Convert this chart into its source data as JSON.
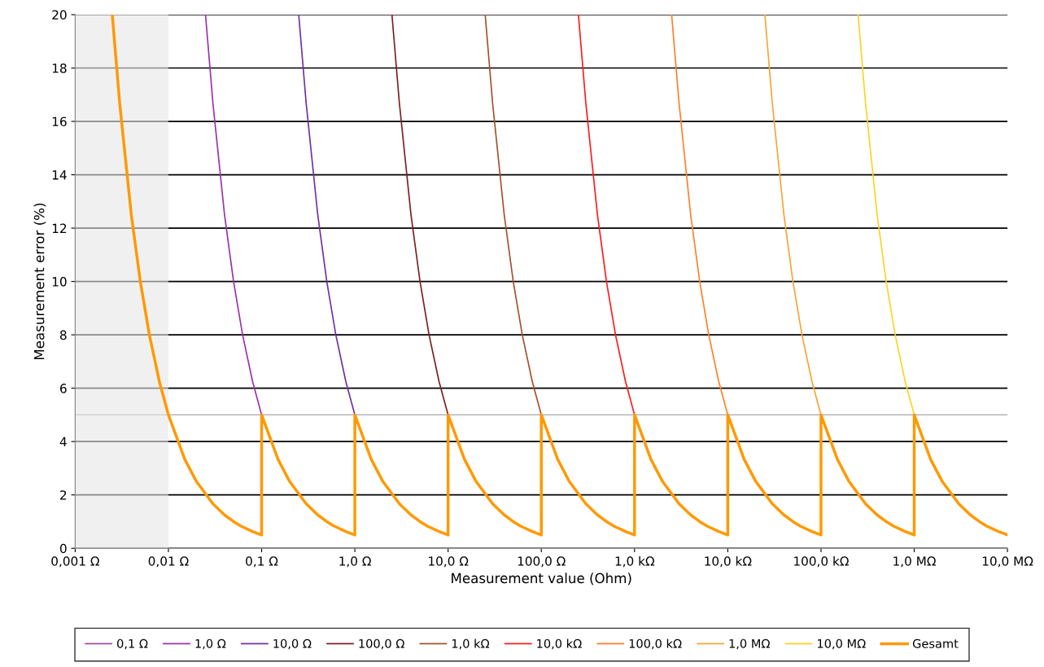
{
  "chart_data": {
    "type": "line",
    "xlabel": "Measurement value (Ohm)",
    "ylabel": "Measurement error (%)",
    "log": "x",
    "xlim": [
      0.001,
      10000000
    ],
    "ylim": [
      0,
      20
    ],
    "xticks": [
      {
        "value": 0.001,
        "label": "0,001 Ω"
      },
      {
        "value": 0.01,
        "label": "0,01 Ω"
      },
      {
        "value": 0.1,
        "label": "0,1 Ω"
      },
      {
        "value": 1,
        "label": "1,0 Ω"
      },
      {
        "value": 10,
        "label": "10,0 Ω"
      },
      {
        "value": 100,
        "label": "100,0 Ω"
      },
      {
        "value": 1000,
        "label": "1,0 kΩ"
      },
      {
        "value": 10000,
        "label": "10,0 kΩ"
      },
      {
        "value": 100000,
        "label": "100,0 kΩ"
      },
      {
        "value": 1000000,
        "label": "1,0 MΩ"
      },
      {
        "value": 10000000,
        "label": "10,0 MΩ"
      }
    ],
    "yticks": [
      0,
      2,
      4,
      6,
      8,
      10,
      12,
      14,
      16,
      18,
      20
    ],
    "grid": "y",
    "legend": "bottom",
    "marker": "none",
    "line_style": "solid",
    "bands": [
      {
        "axis": "x",
        "from": 0.001,
        "to": 0.01,
        "label": null,
        "color": "#e6e6e6"
      }
    ],
    "ref_lines": [
      {
        "axis": "y",
        "value": 5,
        "label": null,
        "color": "#a6a6a6"
      }
    ],
    "series": [
      {
        "name": "0,1 Ω",
        "color": "#a0509a"
      },
      {
        "name": "1,0 Ω",
        "color": "#9932a8",
        "x": [
          0.025,
          0.03,
          0.04,
          0.05,
          0.0625,
          0.08,
          0.1
        ],
        "values": [
          20,
          16.7,
          12.5,
          10,
          8,
          6.25,
          5
        ]
      },
      {
        "name": "10,0 Ω",
        "color": "#7030a0",
        "x": [
          0.25,
          0.3,
          0.4,
          0.5,
          0.625,
          0.8,
          1
        ],
        "values": [
          20,
          16.7,
          12.5,
          10,
          8,
          6.25,
          5
        ]
      },
      {
        "name": "100,0 Ω",
        "color": "#7b1f1f",
        "x": [
          2.5,
          3,
          4,
          5,
          6.25,
          8,
          10
        ],
        "values": [
          20,
          16.7,
          12.5,
          10,
          8,
          6.25,
          5
        ]
      },
      {
        "name": "1,0 kΩ",
        "color": "#a0522d",
        "x": [
          25,
          30,
          40,
          50,
          62.5,
          80,
          100
        ],
        "values": [
          20,
          16.7,
          12.5,
          10,
          8,
          6.25,
          5
        ]
      },
      {
        "name": "10,0 kΩ",
        "color": "#ff1a1a",
        "x": [
          250,
          300,
          400,
          500,
          625,
          800,
          1000
        ],
        "values": [
          20,
          16.7,
          12.5,
          10,
          8,
          6.25,
          5
        ]
      },
      {
        "name": "100,0 kΩ",
        "color": "#ff7f27",
        "x": [
          2500,
          3000,
          4000,
          5000,
          6250,
          8000,
          10000
        ],
        "values": [
          20,
          16.7,
          12.5,
          10,
          8,
          6.25,
          5
        ]
      },
      {
        "name": "1,0 MΩ",
        "color": "#f7a530",
        "x": [
          25000,
          30000,
          40000,
          50000,
          62500,
          80000,
          100000
        ],
        "values": [
          20,
          16.7,
          12.5,
          10,
          8,
          6.25,
          5
        ]
      },
      {
        "name": "10,0 MΩ",
        "color": "#ffd21f",
        "x": [
          250000,
          300000,
          400000,
          500000,
          625000,
          800000,
          1000000
        ],
        "values": [
          20,
          16.7,
          12.5,
          10,
          8,
          6.25,
          5
        ]
      },
      {
        "name": "Gesamt",
        "color": "#ff9900",
        "x": [
          0.0025,
          0.003,
          0.004,
          0.005,
          0.00625,
          0.008,
          0.01,
          0.015,
          0.02,
          0.03,
          0.04,
          0.05,
          0.06,
          0.08,
          0.1,
          0.1,
          0.15,
          0.2,
          0.3,
          0.4,
          0.5,
          0.6,
          0.8,
          1,
          1,
          1.5,
          2,
          3,
          4,
          5,
          6,
          8,
          10,
          10,
          15,
          20,
          30,
          40,
          50,
          60,
          80,
          100,
          100,
          150,
          200,
          300,
          400,
          500,
          600,
          800,
          1000,
          1000,
          1500,
          2000,
          3000,
          4000,
          5000,
          6000,
          8000,
          10000,
          10000,
          15000,
          20000,
          30000,
          40000,
          50000,
          60000,
          80000,
          100000,
          100000,
          150000,
          200000,
          300000,
          400000,
          500000,
          600000,
          800000,
          1000000,
          1000000,
          1500000,
          2000000,
          3000000,
          4000000,
          5000000,
          6000000,
          8000000,
          10000000
        ],
        "values": [
          20,
          16.7,
          12.5,
          10,
          8,
          6.25,
          5,
          3.33,
          2.5,
          1.67,
          1.25,
          1,
          0.83,
          0.63,
          0.5,
          5,
          3.33,
          2.5,
          1.67,
          1.25,
          1,
          0.83,
          0.63,
          0.5,
          5,
          3.33,
          2.5,
          1.67,
          1.25,
          1,
          0.83,
          0.63,
          0.5,
          5,
          3.33,
          2.5,
          1.67,
          1.25,
          1,
          0.83,
          0.63,
          0.5,
          5,
          3.33,
          2.5,
          1.67,
          1.25,
          1,
          0.83,
          0.63,
          0.5,
          5,
          3.33,
          2.5,
          1.67,
          1.25,
          1,
          0.83,
          0.63,
          0.5,
          5,
          3.33,
          2.5,
          1.67,
          1.25,
          1,
          0.83,
          0.63,
          0.5,
          5,
          3.33,
          2.5,
          1.67,
          1.25,
          1,
          0.83,
          0.63,
          0.5,
          5,
          3.33,
          2.5,
          1.67,
          1.25,
          1,
          0.83,
          0.63,
          0.5
        ]
      }
    ]
  }
}
